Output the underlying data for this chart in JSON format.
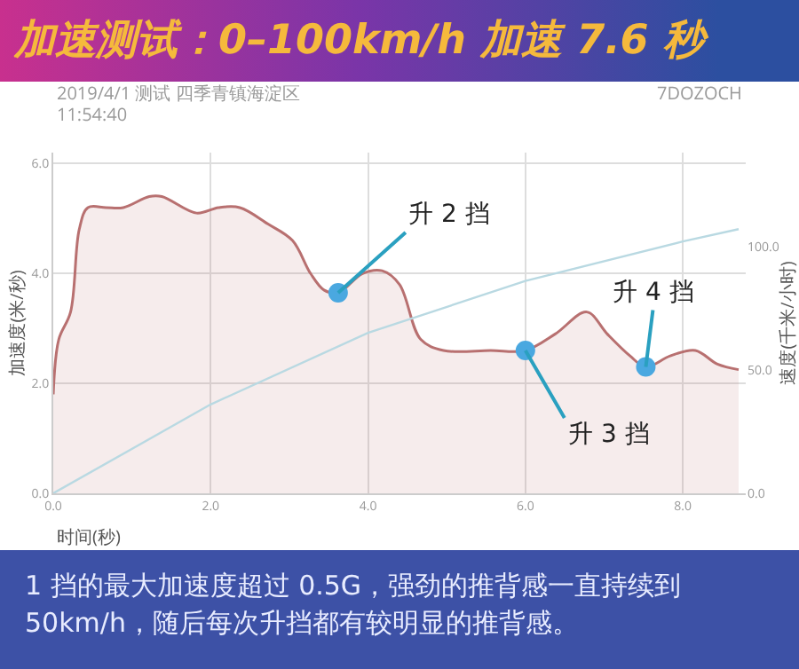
{
  "chart_data": {
    "type": "area",
    "title": "加速测试：0–100km/h 加速 7.6 秒",
    "xlabel": "时间(秒)",
    "ylabel": "加速度(米/秒)",
    "y2label": "速度(千米/小时)",
    "xlim": [
      0,
      8.8
    ],
    "xticks": [
      {
        "value": 0,
        "label": "0.0"
      },
      {
        "value": 2,
        "label": "2.0"
      },
      {
        "value": 4,
        "label": "4.0"
      },
      {
        "value": 6,
        "label": "6.0"
      },
      {
        "value": 8,
        "label": "8.0"
      }
    ],
    "ylim": [
      0,
      6.2
    ],
    "yticks": [
      {
        "value": 0,
        "label": "0.0"
      },
      {
        "value": 2,
        "label": "2.0"
      },
      {
        "value": 4,
        "label": "4.0"
      },
      {
        "value": 6,
        "label": "6.0"
      }
    ],
    "y2lim": [
      0,
      138
    ],
    "y2ticks": [
      {
        "value": 0,
        "label": "0.0"
      },
      {
        "value": 50,
        "label": "50.0"
      },
      {
        "value": 100,
        "label": "100.0"
      }
    ],
    "grid": true,
    "series": [
      {
        "color": "#b87070",
        "x": [
          0,
          0.07,
          0.22,
          0.33,
          0.44,
          0.67,
          0.89,
          1.22,
          1.38,
          1.82,
          2.1,
          2.37,
          2.73,
          3.04,
          3.27,
          3.44,
          3.62,
          3.93,
          4.18,
          4.4,
          4.67,
          4.96,
          5.56,
          6.0,
          6.38,
          6.78,
          7.04,
          7.33,
          7.53,
          7.84,
          8.16,
          8.44,
          8.71
        ],
        "values": [
          1.8,
          2.8,
          3.3,
          4.8,
          5.2,
          5.2,
          5.2,
          5.4,
          5.4,
          5.1,
          5.2,
          5.2,
          4.9,
          4.6,
          4.0,
          3.7,
          3.65,
          4.0,
          4.05,
          3.8,
          2.8,
          2.6,
          2.6,
          2.6,
          2.9,
          3.3,
          2.9,
          2.5,
          2.3,
          2.5,
          2.6,
          2.35,
          2.25
        ]
      },
      {
        "type": "line",
        "axis": "y2",
        "color": "#b9d9e2",
        "x": [
          0,
          2,
          4,
          6,
          8,
          8.71
        ],
        "values": [
          0,
          36,
          65,
          86,
          102,
          107
        ]
      },
      {
        "type": "scatter",
        "marker": "circle",
        "color": "#4aa8e0",
        "x": [
          3.62,
          6.0,
          7.53
        ],
        "values": [
          3.65,
          2.6,
          2.3
        ]
      }
    ],
    "annotations": [
      "2019/4/1 测试 四季青镇海淀区",
      "11:54:40",
      "7DOZOCH",
      {
        "text": "升 2 挡",
        "x": 3.62,
        "y": 3.65
      },
      {
        "text": "升 3 挡",
        "x": 6.0,
        "y": 2.6
      },
      {
        "text": "升 4 挡",
        "x": 7.53,
        "y": 2.3
      },
      "1 挡的最大加速度超过 0.5G，强劲的推背感一直持续到 50km/h，随后每次升挡都有较明显的推背感。"
    ]
  }
}
